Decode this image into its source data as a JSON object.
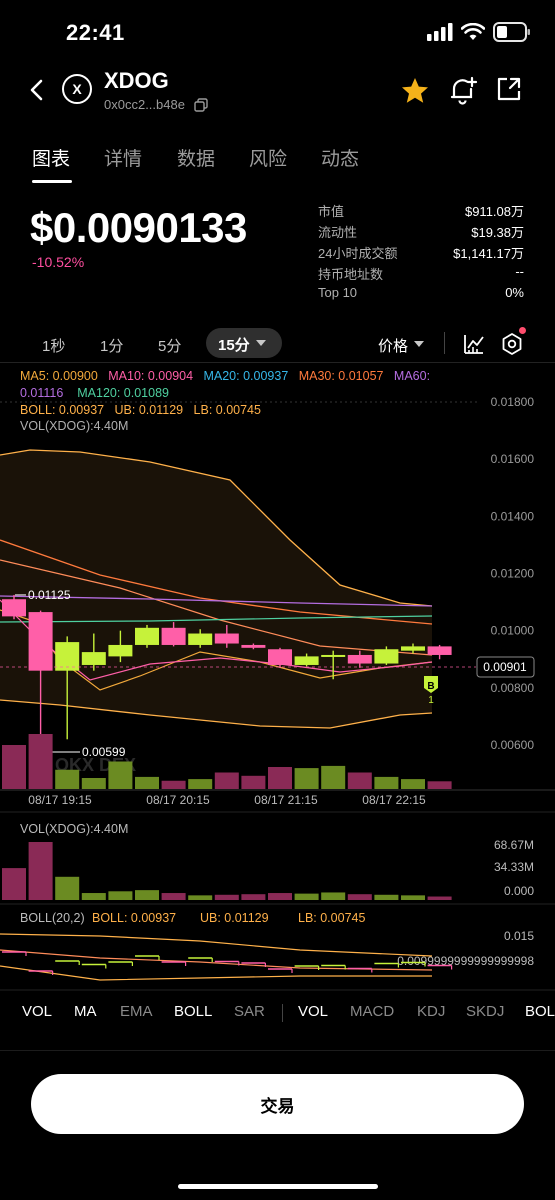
{
  "status": {
    "time": "22:41"
  },
  "header": {
    "token_name": "XDOG",
    "token_address": "0x0cc2...b48e",
    "logo_glyph": "X"
  },
  "tabs": [
    {
      "label": "图表"
    },
    {
      "label": "详情"
    },
    {
      "label": "数据"
    },
    {
      "label": "风险"
    },
    {
      "label": "动态"
    }
  ],
  "price": {
    "value": "$0.0090133",
    "change": "-10.52%"
  },
  "stats": [
    {
      "label": "市值",
      "value": "$911.08万"
    },
    {
      "label": "流动性",
      "value": "$19.38万"
    },
    {
      "label": "24小时成交额",
      "value": "$1,141.17万"
    },
    {
      "label": "持币地址数",
      "value": "--"
    },
    {
      "label": "Top 10",
      "value": "0%"
    }
  ],
  "timeframes": {
    "options": [
      "1秒",
      "1分",
      "5分"
    ],
    "selected": "15分",
    "price_mode": "价格"
  },
  "legend": {
    "ma5": "MA5: 0.00900",
    "ma10": "MA10: 0.00904",
    "ma20": "MA20: 0.00937",
    "ma30": "MA30: 0.01057",
    "ma60": "MA60:",
    "ma60_val": "0.01116",
    "ma120": "MA120: 0.01089",
    "boll": "BOLL: 0.00937",
    "ub": "UB: 0.01129",
    "lb": "LB: 0.00745",
    "vol": "VOL(XDOG):4.40M"
  },
  "chart_data": {
    "type": "candlestick",
    "y_ticks": [
      "0.01800",
      "0.01600",
      "0.01400",
      "0.01200",
      "0.01000",
      "0.00800",
      "0.00600"
    ],
    "x_ticks": [
      "08/17 19:15",
      "08/17 20:15",
      "08/17 21:15",
      "08/17 22:15"
    ],
    "current_price_tag": "0.00901",
    "high_marker": "0.01125",
    "low_marker": "0.00599",
    "buy_marker": "B",
    "buy_count": "1",
    "watermark": "OKX DEX",
    "candles": [
      {
        "o": 0.0111,
        "c": 0.0105,
        "h": 0.01125,
        "l": 0.0104
      },
      {
        "o": 0.01065,
        "c": 0.0086,
        "h": 0.0107,
        "l": 0.00599
      },
      {
        "o": 0.0086,
        "c": 0.0096,
        "h": 0.0098,
        "l": 0.0062
      },
      {
        "o": 0.0088,
        "c": 0.00925,
        "h": 0.0099,
        "l": 0.0086
      },
      {
        "o": 0.0091,
        "c": 0.0095,
        "h": 0.01,
        "l": 0.0089
      },
      {
        "o": 0.0095,
        "c": 0.0101,
        "h": 0.0102,
        "l": 0.0094
      },
      {
        "o": 0.0101,
        "c": 0.0095,
        "h": 0.0103,
        "l": 0.00945
      },
      {
        "o": 0.0095,
        "c": 0.0099,
        "h": 0.01005,
        "l": 0.0094
      },
      {
        "o": 0.0099,
        "c": 0.00955,
        "h": 0.0102,
        "l": 0.0094
      },
      {
        "o": 0.0095,
        "c": 0.0094,
        "h": 0.00955,
        "l": 0.00935
      },
      {
        "o": 0.00935,
        "c": 0.0088,
        "h": 0.0094,
        "l": 0.0087
      },
      {
        "o": 0.0088,
        "c": 0.0091,
        "h": 0.0092,
        "l": 0.00875
      },
      {
        "o": 0.0091,
        "c": 0.00915,
        "h": 0.0093,
        "l": 0.0083
      },
      {
        "o": 0.00915,
        "c": 0.00885,
        "h": 0.0093,
        "l": 0.0087
      },
      {
        "o": 0.00885,
        "c": 0.00935,
        "h": 0.00945,
        "l": 0.0088
      },
      {
        "o": 0.0093,
        "c": 0.00945,
        "h": 0.00955,
        "l": 0.0092
      },
      {
        "o": 0.00945,
        "c": 0.00915,
        "h": 0.0095,
        "l": 0.009
      }
    ]
  },
  "volume": {
    "label": "VOL(XDOG):4.40M",
    "ticks": [
      "68.67M",
      "34.33M",
      "0.000"
    ]
  },
  "boll_panel": {
    "label": "BOLL(20,2)",
    "boll": "BOLL: 0.00937",
    "ub": "UB: 0.01129",
    "lb": "LB: 0.00745",
    "ticks": [
      "0.015",
      "0.0099999999999999998"
    ]
  },
  "indicator_tabs": [
    "VOL",
    "MA",
    "EMA",
    "BOLL",
    "SAR",
    "VOL",
    "MACD",
    "KDJ",
    "SKDJ",
    "BOLL"
  ],
  "trade_button": "交易",
  "colors": {
    "up": "#c6f23a",
    "down": "#ff5fa8",
    "up_vol": "#6b8b22",
    "down_vol": "#8a2a56"
  }
}
